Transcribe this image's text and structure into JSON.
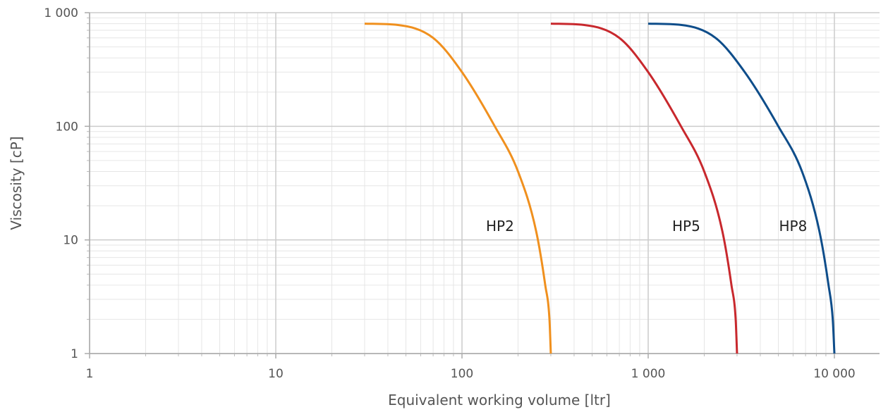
{
  "chart_data": {
    "type": "line",
    "xlabel": "Equivalent working volume [ltr]",
    "ylabel": "Viscosity [cP]",
    "x_scale": "log",
    "y_scale": "log",
    "xlim": [
      1,
      20000
    ],
    "ylim": [
      1,
      1000
    ],
    "x_ticks": [
      {
        "value": 1,
        "label": "1"
      },
      {
        "value": 10,
        "label": "10"
      },
      {
        "value": 100,
        "label": "100"
      },
      {
        "value": 1000,
        "label": "1 000"
      },
      {
        "value": 10000,
        "label": "10 000"
      }
    ],
    "y_ticks": [
      {
        "value": 1,
        "label": "1"
      },
      {
        "value": 10,
        "label": "10"
      },
      {
        "value": 100,
        "label": "100"
      },
      {
        "value": 1000,
        "label": "1 000"
      }
    ],
    "grid": true,
    "legend": "none",
    "series": [
      {
        "name": "HP2",
        "color": "#f0901e",
        "label_at": {
          "x": 160,
          "y": 12
        },
        "points": [
          [
            30,
            800
          ],
          [
            45,
            780
          ],
          [
            70,
            600
          ],
          [
            100,
            300
          ],
          [
            150,
            100
          ],
          [
            200,
            40
          ],
          [
            250,
            12
          ],
          [
            280,
            4
          ],
          [
            295,
            2
          ],
          [
            300,
            1
          ]
        ]
      },
      {
        "name": "HP5",
        "color": "#c8282d",
        "label_at": {
          "x": 1600,
          "y": 12
        },
        "points": [
          [
            300,
            800
          ],
          [
            450,
            780
          ],
          [
            700,
            600
          ],
          [
            1000,
            300
          ],
          [
            1500,
            100
          ],
          [
            2000,
            40
          ],
          [
            2500,
            12
          ],
          [
            2800,
            4
          ],
          [
            2950,
            2
          ],
          [
            3000,
            1
          ]
        ]
      },
      {
        "name": "HP8",
        "color": "#0e4d8a",
        "label_at": {
          "x": 6000,
          "y": 12
        },
        "points": [
          [
            1000,
            800
          ],
          [
            1500,
            780
          ],
          [
            2300,
            600
          ],
          [
            3300,
            300
          ],
          [
            5000,
            100
          ],
          [
            6700,
            40
          ],
          [
            8300,
            12
          ],
          [
            9300,
            4
          ],
          [
            9800,
            2
          ],
          [
            10000,
            1
          ]
        ]
      }
    ]
  }
}
